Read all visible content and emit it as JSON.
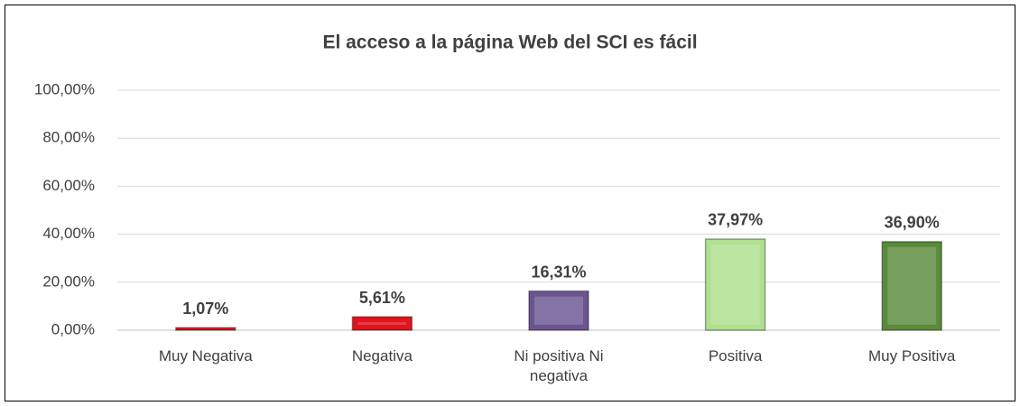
{
  "chart_data": {
    "type": "bar",
    "title": "El acceso a la página Web del SCI es fácil",
    "categories": [
      "Muy Negativa",
      "Negativa",
      "Ni positiva Ni negativa",
      "Positiva",
      "Muy Positiva"
    ],
    "values": [
      1.07,
      5.61,
      16.31,
      37.97,
      36.9
    ],
    "value_labels": [
      "1,07%",
      "5,61%",
      "16,31%",
      "37,97%",
      "36,90%"
    ],
    "colors": [
      "#e0141c",
      "#e0141c",
      "#6a5590",
      "#aee08e",
      "#5a8a3a"
    ],
    "ylim": [
      0,
      100
    ],
    "yticks": [
      {
        "value": 0,
        "label": "0,00%"
      },
      {
        "value": 20,
        "label": "20,00%"
      },
      {
        "value": 40,
        "label": "40,00%"
      },
      {
        "value": 60,
        "label": "60,00%"
      },
      {
        "value": 80,
        "label": "80,00%"
      },
      {
        "value": 100,
        "label": "100,00%"
      }
    ],
    "grid": true
  }
}
